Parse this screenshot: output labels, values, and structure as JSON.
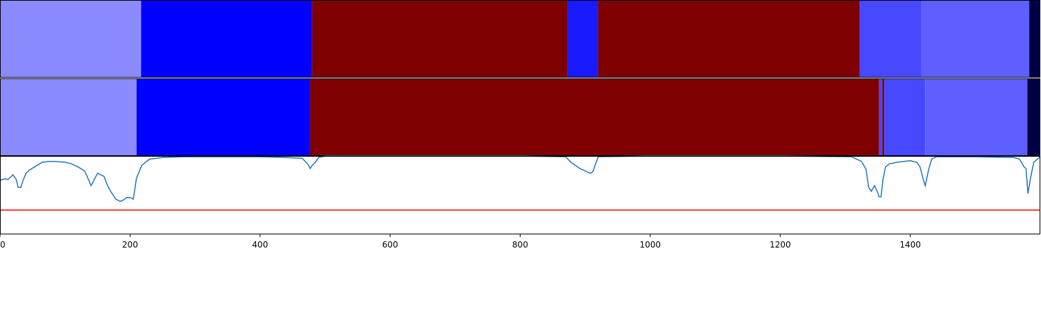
{
  "chart_data": [
    {
      "type": "bar",
      "orientation": "horizontal-segments",
      "xlim": [
        0,
        1600
      ],
      "segments": [
        {
          "start": 0,
          "end": 217,
          "color": "#8b8bff"
        },
        {
          "start": 217,
          "end": 480,
          "color": "#0000ff"
        },
        {
          "start": 480,
          "end": 873,
          "color": "#7f0000"
        },
        {
          "start": 873,
          "end": 920,
          "color": "#1a1aff"
        },
        {
          "start": 920,
          "end": 1322,
          "color": "#7f0000"
        },
        {
          "start": 1322,
          "end": 1417,
          "color": "#4848ff"
        },
        {
          "start": 1417,
          "end": 1583,
          "color": "#5f5fff"
        },
        {
          "start": 1583,
          "end": 1600,
          "color": "#000045"
        }
      ]
    },
    {
      "type": "bar",
      "orientation": "horizontal-segments",
      "xlim": [
        0,
        1600
      ],
      "segments": [
        {
          "start": 0,
          "end": 210,
          "color": "#8b8bff"
        },
        {
          "start": 210,
          "end": 477,
          "color": "#0000ff"
        },
        {
          "start": 477,
          "end": 1352,
          "color": "#7f0000"
        },
        {
          "start": 1352,
          "end": 1357,
          "color": "#4848ff"
        },
        {
          "start": 1357,
          "end": 1360,
          "color": "#7f0000"
        },
        {
          "start": 1360,
          "end": 1423,
          "color": "#4848ff"
        },
        {
          "start": 1423,
          "end": 1580,
          "color": "#5f5fff"
        },
        {
          "start": 1580,
          "end": 1600,
          "color": "#000045"
        }
      ]
    },
    {
      "type": "line",
      "xlim": [
        0,
        1600
      ],
      "ylim": [
        0,
        1
      ],
      "xticks": [
        "0",
        "200",
        "400",
        "600",
        "800",
        "1000",
        "1200",
        "1400"
      ],
      "xtick_values": [
        0,
        200,
        400,
        600,
        800,
        1000,
        1200,
        1400
      ],
      "threshold": {
        "value": 0.31,
        "color": "#ff0000"
      },
      "series": [
        {
          "color": "#1f77b4",
          "x": [
            0,
            8,
            12,
            16,
            20,
            25,
            28,
            32,
            35,
            40,
            45,
            55,
            65,
            75,
            85,
            100,
            110,
            120,
            130,
            135,
            140,
            150,
            160,
            165,
            170,
            178,
            185,
            190,
            195,
            200,
            205,
            210,
            213,
            218,
            230,
            250,
            280,
            320,
            360,
            400,
            440,
            465,
            474,
            477,
            480,
            485,
            490,
            500,
            600,
            700,
            800,
            870,
            878,
            885,
            892,
            900,
            908,
            912,
            916,
            920,
            1000,
            1100,
            1200,
            1310,
            1325,
            1332,
            1336,
            1340,
            1345,
            1350,
            1352,
            1355,
            1358,
            1362,
            1368,
            1380,
            1400,
            1410,
            1415,
            1420,
            1423,
            1428,
            1433,
            1440,
            1500,
            1560,
            1568,
            1575,
            1578,
            1581,
            1585,
            1590,
            1600
          ],
          "y": [
            0.69,
            0.71,
            0.7,
            0.73,
            0.76,
            0.7,
            0.6,
            0.6,
            0.68,
            0.78,
            0.82,
            0.87,
            0.92,
            0.93,
            0.93,
            0.92,
            0.9,
            0.86,
            0.81,
            0.72,
            0.62,
            0.78,
            0.74,
            0.63,
            0.55,
            0.45,
            0.42,
            0.44,
            0.47,
            0.47,
            0.45,
            0.72,
            0.78,
            0.88,
            0.96,
            0.98,
            0.99,
            0.99,
            0.99,
            0.99,
            0.98,
            0.97,
            0.89,
            0.84,
            0.88,
            0.92,
            0.98,
            1.0,
            1.0,
            1.0,
            1.0,
            0.99,
            0.92,
            0.88,
            0.84,
            0.81,
            0.78,
            0.8,
            0.9,
            0.99,
            1.0,
            1.0,
            1.0,
            0.99,
            0.93,
            0.83,
            0.6,
            0.55,
            0.62,
            0.53,
            0.48,
            0.48,
            0.7,
            0.86,
            0.9,
            0.92,
            0.94,
            0.92,
            0.86,
            0.7,
            0.62,
            0.82,
            0.96,
            0.99,
            0.99,
            0.98,
            0.96,
            0.86,
            0.84,
            0.52,
            0.72,
            0.92,
            0.99
          ]
        }
      ]
    }
  ]
}
